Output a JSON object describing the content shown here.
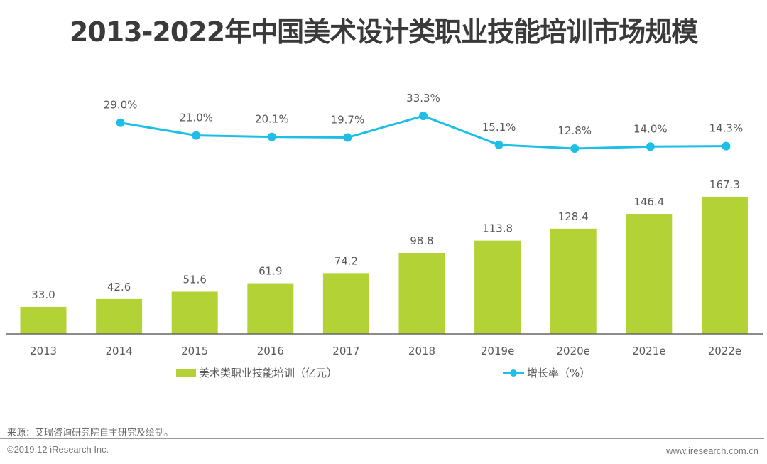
{
  "title": "2013-2022年中国美术设计类职业技能培训市场规模",
  "chart_data": {
    "type": "bar",
    "title": "2013-2022年中国美术设计类职业技能培训市场规模",
    "xlabel": "",
    "ylabel": "",
    "categories": [
      "2013",
      "2014",
      "2015",
      "2016",
      "2017",
      "2018",
      "2019e",
      "2020e",
      "2021e",
      "2022e"
    ],
    "series": [
      {
        "name": "美术类职业技能培训（亿元）",
        "type": "bar",
        "color": "#b2d235",
        "values": [
          33.0,
          42.6,
          51.6,
          61.9,
          74.2,
          98.8,
          113.8,
          128.4,
          146.4,
          167.3
        ],
        "labels": [
          "33.0",
          "42.6",
          "51.6",
          "61.9",
          "74.2",
          "98.8",
          "113.8",
          "128.4",
          "146.4",
          "167.3"
        ]
      },
      {
        "name": "增长率（%）",
        "type": "line",
        "color": "#1ebfe6",
        "values": [
          null,
          29.0,
          21.0,
          20.1,
          19.7,
          33.3,
          15.1,
          12.8,
          14.0,
          14.3
        ],
        "labels": [
          null,
          "29.0%",
          "21.0%",
          "20.1%",
          "19.7%",
          "33.3%",
          "15.1%",
          "12.8%",
          "14.0%",
          "14.3%"
        ]
      }
    ],
    "grid": false,
    "legend": "bottom"
  },
  "legend": {
    "bar_label": "美术类职业技能培训（亿元）",
    "line_label": "增长率（%）"
  },
  "footer": {
    "source": "来源：艾瑞咨询研究院自主研究及绘制。",
    "copyright": "©2019.12 iResearch Inc.",
    "website": "www.iresearch.com.cn"
  }
}
